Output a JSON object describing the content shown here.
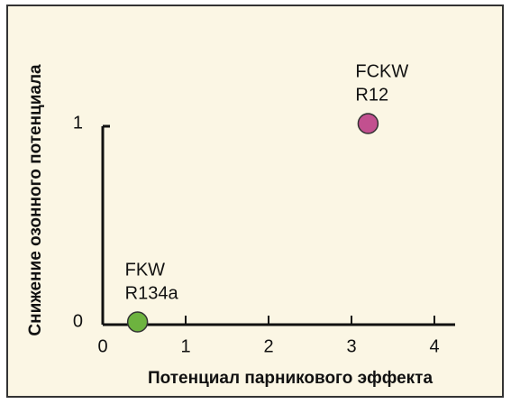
{
  "chart_data": {
    "type": "scatter",
    "xlabel": "Потенциал парникового эффекта",
    "ylabel": "Снижение озонного потенциала",
    "points": [
      {
        "label": [
          "FKW",
          "R134a"
        ],
        "x": 0.42,
        "y": 0,
        "color": "#6db33f"
      },
      {
        "label": [
          "FCKW",
          "R12"
        ],
        "x": 3.2,
        "y": 1,
        "color": "#c2508f"
      }
    ],
    "xlim": [
      0,
      4.25
    ],
    "ylim": [
      0,
      1
    ],
    "xticks": [
      0,
      1,
      2,
      3,
      4
    ],
    "yticks": [
      0,
      1
    ]
  }
}
